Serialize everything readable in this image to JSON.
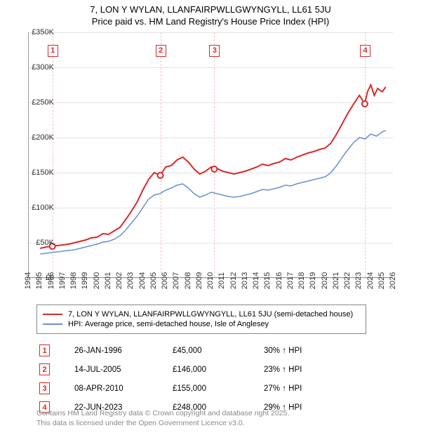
{
  "title_line1": "7, LON Y WYLAN, LLANFAIRPWLLGWYNGYLL, LL61 5JU",
  "title_line2": "Price paid vs. HM Land Registry's House Price Index (HPI)",
  "chart": {
    "type": "line",
    "xlim": [
      1994,
      2026
    ],
    "ylim": [
      0,
      350000
    ],
    "ytick_step": 50000,
    "yticks": [
      "£0",
      "£50K",
      "£100K",
      "£150K",
      "£200K",
      "£250K",
      "£300K",
      "£350K"
    ],
    "xticks": [
      1994,
      1995,
      1996,
      1997,
      1998,
      1999,
      2000,
      2001,
      2002,
      2003,
      2004,
      2005,
      2006,
      2007,
      2008,
      2009,
      2010,
      2011,
      2012,
      2013,
      2014,
      2015,
      2016,
      2017,
      2018,
      2019,
      2020,
      2021,
      2022,
      2023,
      2024,
      2025,
      2026
    ],
    "grid_color": "#e3e3e3",
    "background_color": "#ffffff",
    "series": [
      {
        "id": "property",
        "label": "7, LON Y WYLAN, LLANFAIRPWLLGWYNGYLL, LL61 5JU (semi-detached house)",
        "color": "#d9292a",
        "width": 2,
        "points": [
          [
            1995.0,
            42000
          ],
          [
            1995.5,
            44000
          ],
          [
            1996.07,
            45000
          ],
          [
            1996.5,
            46000
          ],
          [
            1997.0,
            47000
          ],
          [
            1997.5,
            48000
          ],
          [
            1998.0,
            50000
          ],
          [
            1998.5,
            52000
          ],
          [
            1999.0,
            54000
          ],
          [
            1999.5,
            57000
          ],
          [
            2000.0,
            58000
          ],
          [
            2000.5,
            63000
          ],
          [
            2001.0,
            62000
          ],
          [
            2001.5,
            67000
          ],
          [
            2002.0,
            72000
          ],
          [
            2002.5,
            83000
          ],
          [
            2003.0,
            95000
          ],
          [
            2003.5,
            108000
          ],
          [
            2004.0,
            125000
          ],
          [
            2004.5,
            140000
          ],
          [
            2005.0,
            150000
          ],
          [
            2005.54,
            146000
          ],
          [
            2006.0,
            158000
          ],
          [
            2006.5,
            160000
          ],
          [
            2007.0,
            168000
          ],
          [
            2007.5,
            172000
          ],
          [
            2008.0,
            165000
          ],
          [
            2008.5,
            155000
          ],
          [
            2009.0,
            148000
          ],
          [
            2009.5,
            152000
          ],
          [
            2010.0,
            158000
          ],
          [
            2010.27,
            155000
          ],
          [
            2010.5,
            156000
          ],
          [
            2011.0,
            152000
          ],
          [
            2011.5,
            150000
          ],
          [
            2012.0,
            148000
          ],
          [
            2012.5,
            150000
          ],
          [
            2013.0,
            152000
          ],
          [
            2013.5,
            155000
          ],
          [
            2014.0,
            158000
          ],
          [
            2014.5,
            162000
          ],
          [
            2015.0,
            160000
          ],
          [
            2015.5,
            163000
          ],
          [
            2016.0,
            165000
          ],
          [
            2016.5,
            170000
          ],
          [
            2017.0,
            168000
          ],
          [
            2017.5,
            172000
          ],
          [
            2018.0,
            175000
          ],
          [
            2018.5,
            178000
          ],
          [
            2019.0,
            180000
          ],
          [
            2019.5,
            183000
          ],
          [
            2020.0,
            185000
          ],
          [
            2020.5,
            192000
          ],
          [
            2021.0,
            205000
          ],
          [
            2021.5,
            220000
          ],
          [
            2022.0,
            235000
          ],
          [
            2022.5,
            248000
          ],
          [
            2023.0,
            260000
          ],
          [
            2023.47,
            248000
          ],
          [
            2023.7,
            265000
          ],
          [
            2024.0,
            275000
          ],
          [
            2024.3,
            260000
          ],
          [
            2024.6,
            270000
          ],
          [
            2025.0,
            265000
          ],
          [
            2025.3,
            272000
          ]
        ]
      },
      {
        "id": "hpi",
        "label": "HPI: Average price, semi-detached house, Isle of Anglesey",
        "color": "#6a8fd0",
        "width": 1.5,
        "points": [
          [
            1995.0,
            34000
          ],
          [
            1995.5,
            35000
          ],
          [
            1996.0,
            36000
          ],
          [
            1996.5,
            37000
          ],
          [
            1997.0,
            38000
          ],
          [
            1997.5,
            39000
          ],
          [
            1998.0,
            40000
          ],
          [
            1998.5,
            42000
          ],
          [
            1999.0,
            44000
          ],
          [
            1999.5,
            46000
          ],
          [
            2000.0,
            48000
          ],
          [
            2000.5,
            51000
          ],
          [
            2001.0,
            52000
          ],
          [
            2001.5,
            55000
          ],
          [
            2002.0,
            60000
          ],
          [
            2002.5,
            68000
          ],
          [
            2003.0,
            78000
          ],
          [
            2003.5,
            88000
          ],
          [
            2004.0,
            100000
          ],
          [
            2004.5,
            112000
          ],
          [
            2005.0,
            118000
          ],
          [
            2005.5,
            120000
          ],
          [
            2006.0,
            125000
          ],
          [
            2006.5,
            128000
          ],
          [
            2007.0,
            132000
          ],
          [
            2007.5,
            134000
          ],
          [
            2008.0,
            128000
          ],
          [
            2008.5,
            120000
          ],
          [
            2009.0,
            115000
          ],
          [
            2009.5,
            118000
          ],
          [
            2010.0,
            122000
          ],
          [
            2010.5,
            120000
          ],
          [
            2011.0,
            118000
          ],
          [
            2011.5,
            116000
          ],
          [
            2012.0,
            115000
          ],
          [
            2012.5,
            116000
          ],
          [
            2013.0,
            118000
          ],
          [
            2013.5,
            120000
          ],
          [
            2014.0,
            123000
          ],
          [
            2014.5,
            126000
          ],
          [
            2015.0,
            125000
          ],
          [
            2015.5,
            127000
          ],
          [
            2016.0,
            129000
          ],
          [
            2016.5,
            132000
          ],
          [
            2017.0,
            131000
          ],
          [
            2017.5,
            134000
          ],
          [
            2018.0,
            136000
          ],
          [
            2018.5,
            138000
          ],
          [
            2019.0,
            140000
          ],
          [
            2019.5,
            142000
          ],
          [
            2020.0,
            144000
          ],
          [
            2020.5,
            150000
          ],
          [
            2021.0,
            160000
          ],
          [
            2021.5,
            172000
          ],
          [
            2022.0,
            183000
          ],
          [
            2022.5,
            193000
          ],
          [
            2023.0,
            200000
          ],
          [
            2023.5,
            198000
          ],
          [
            2024.0,
            205000
          ],
          [
            2024.5,
            202000
          ],
          [
            2025.0,
            208000
          ],
          [
            2025.3,
            210000
          ]
        ]
      }
    ],
    "sale_markers": [
      {
        "n": "1",
        "year": 1996.07,
        "date": "26-JAN-1996",
        "price": "£45,000",
        "delta": "30% ↑ HPI"
      },
      {
        "n": "2",
        "year": 2005.54,
        "date": "14-JUL-2005",
        "price": "£146,000",
        "delta": "23% ↑ HPI"
      },
      {
        "n": "3",
        "year": 2010.27,
        "date": "08-APR-2010",
        "price": "£155,000",
        "delta": "27% ↑ HPI"
      },
      {
        "n": "4",
        "year": 2023.47,
        "date": "22-JUN-2023",
        "price": "£248,000",
        "delta": "29% ↑ HPI"
      }
    ],
    "marker_color": "#d9292a",
    "marker_line_color": "#f4c3c3"
  },
  "footer_line1": "Contains HM Land Registry data © Crown copyright and database right 2025.",
  "footer_line2": "This data is licensed under the Open Government Licence v3.0."
}
